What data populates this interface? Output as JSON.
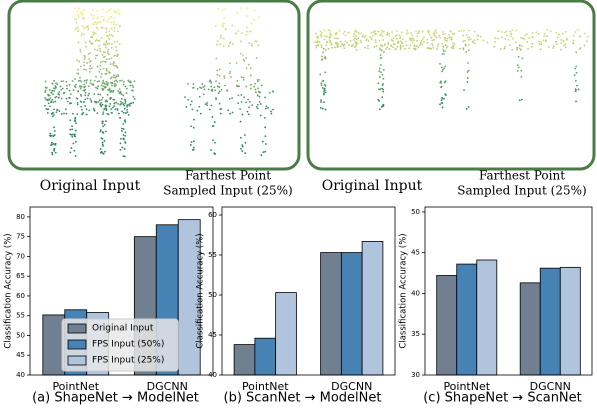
{
  "figure": {
    "left_original_label": "Original Input",
    "left_fps_label": [
      "Farthest Point",
      "Sampled Input (25%)"
    ],
    "right_original_label": "Original Input",
    "right_fps_label": [
      "Farthest Point",
      "Sampled Input (25%)"
    ]
  },
  "chart_data": [
    {
      "type": "bar",
      "caption": "(a) ShapeNet → ModelNet",
      "ylabel": "Classification Accuracy (%)",
      "categories": [
        "PointNet",
        "DGCNN"
      ],
      "series": [
        {
          "name": "Original Input",
          "color": "#708090",
          "values": [
            55.2,
            75.0
          ]
        },
        {
          "name": "FPS Input (50%)",
          "color": "#4682b4",
          "values": [
            56.5,
            78.0
          ]
        },
        {
          "name": "FPS Input (25%)",
          "color": "#b0c4de",
          "values": [
            55.8,
            79.3
          ]
        }
      ],
      "ylim": [
        40,
        82.5
      ],
      "yticks": [
        40,
        45,
        50,
        55,
        60,
        65,
        70,
        75,
        80
      ],
      "legend": "lower left"
    },
    {
      "type": "bar",
      "caption": "(b) ScanNet → ModelNet",
      "ylabel": "Classification Accuracy (%)",
      "categories": [
        "PointNet",
        "DGCNN"
      ],
      "series": [
        {
          "color": "#708090",
          "values": [
            43.8,
            55.3
          ]
        },
        {
          "color": "#4682b4",
          "values": [
            44.6,
            55.3
          ]
        },
        {
          "color": "#b0c4de",
          "values": [
            50.3,
            56.7
          ]
        }
      ],
      "ylim": [
        40,
        61
      ],
      "yticks": [
        40,
        45,
        50,
        55,
        60
      ],
      "legend": "none"
    },
    {
      "type": "bar",
      "caption": "(c) ShapeNet → ScanNet",
      "ylabel": "Classification Accuracy (%)",
      "categories": [
        "PointNet",
        "DGCNN"
      ],
      "series": [
        {
          "color": "#708090",
          "values": [
            42.2,
            41.3
          ]
        },
        {
          "color": "#4682b4",
          "values": [
            43.6,
            43.1
          ]
        },
        {
          "color": "#b0c4de",
          "values": [
            44.1,
            43.2
          ]
        }
      ],
      "ylim": [
        30,
        50.6
      ],
      "yticks": [
        30,
        35,
        40,
        45,
        50
      ],
      "legend": "none"
    }
  ]
}
